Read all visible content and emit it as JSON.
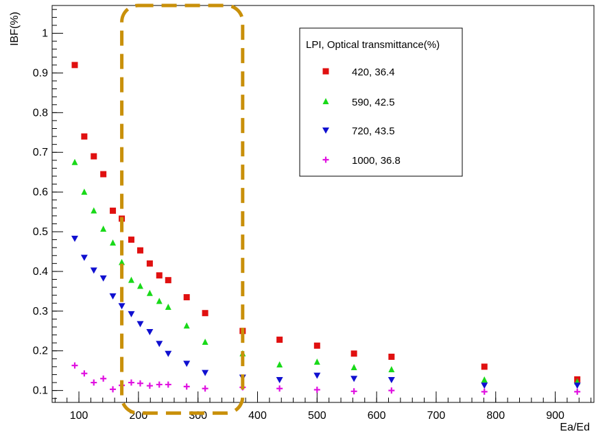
{
  "chart_data": {
    "type": "scatter",
    "title": "",
    "xlabel": "Ea/Ed",
    "ylabel": "IBF(%)",
    "xlim": [
      55,
      965
    ],
    "ylim": [
      0.07,
      1.07
    ],
    "grid": false,
    "legend_position": "top-right",
    "x_ticks": [
      100,
      200,
      300,
      400,
      500,
      600,
      700,
      800,
      900
    ],
    "y_ticks": [
      0.1,
      0.2,
      0.3,
      0.4,
      0.5,
      0.6,
      0.7,
      0.8,
      0.9,
      1
    ],
    "legend": {
      "title": "LPI, Optical transmittance(%)"
    },
    "series": [
      {
        "name": "420, 36.4",
        "marker": "square",
        "color": "#e01010",
        "x": [
          93,
          109,
          125,
          141,
          157,
          172,
          188,
          203,
          219,
          235,
          250,
          281,
          312,
          375,
          437,
          500,
          562,
          625,
          781,
          937
        ],
        "y": [
          0.92,
          0.74,
          0.69,
          0.645,
          0.553,
          0.533,
          0.48,
          0.453,
          0.42,
          0.39,
          0.378,
          0.335,
          0.295,
          0.25,
          0.228,
          0.213,
          0.193,
          0.185,
          0.16,
          0.128
        ]
      },
      {
        "name": "590, 42.5",
        "marker": "triangle-up",
        "color": "#19d919",
        "x": [
          93,
          109,
          125,
          141,
          157,
          172,
          188,
          203,
          219,
          235,
          250,
          281,
          312,
          375,
          437,
          500,
          562,
          625,
          781,
          937
        ],
        "y": [
          0.675,
          0.6,
          0.553,
          0.507,
          0.472,
          0.423,
          0.378,
          0.363,
          0.345,
          0.325,
          0.31,
          0.263,
          0.222,
          0.193,
          0.165,
          0.172,
          0.158,
          0.153,
          0.127,
          0.122
        ]
      },
      {
        "name": "720, 43.5",
        "marker": "triangle-down",
        "color": "#1010d0",
        "x": [
          93,
          109,
          125,
          141,
          157,
          172,
          188,
          203,
          219,
          235,
          250,
          281,
          312,
          375,
          437,
          500,
          562,
          625,
          781,
          937
        ],
        "y": [
          0.483,
          0.435,
          0.403,
          0.383,
          0.338,
          0.313,
          0.293,
          0.268,
          0.248,
          0.218,
          0.193,
          0.168,
          0.145,
          0.133,
          0.127,
          0.138,
          0.13,
          0.127,
          0.113,
          0.113
        ]
      },
      {
        "name": "1000, 36.8",
        "marker": "plus",
        "color": "#e010e0",
        "x": [
          93,
          109,
          125,
          141,
          157,
          172,
          188,
          203,
          219,
          235,
          250,
          281,
          312,
          375,
          437,
          500,
          562,
          625,
          781,
          937
        ],
        "y": [
          0.163,
          0.143,
          0.12,
          0.13,
          0.103,
          0.113,
          0.12,
          0.118,
          0.112,
          0.115,
          0.115,
          0.11,
          0.105,
          0.108,
          0.105,
          0.102,
          0.098,
          0.1,
          0.097,
          0.097
        ]
      }
    ],
    "highlight": {
      "shape": "dashed-rounded-rectangle",
      "color": "#c9900a",
      "x_range": [
        172,
        375
      ],
      "y_range": [
        0.043,
        1.07
      ]
    }
  }
}
